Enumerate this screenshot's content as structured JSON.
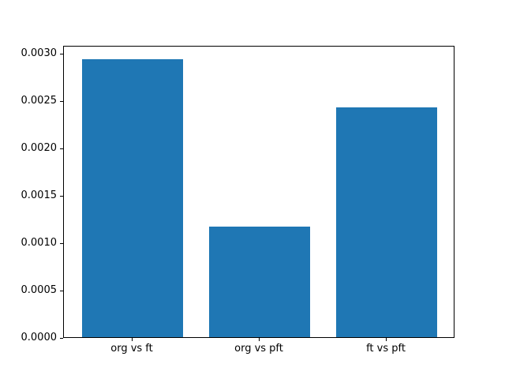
{
  "chart_data": {
    "type": "bar",
    "title": "",
    "xlabel": "",
    "ylabel": "",
    "categories": [
      "org vs ft",
      "org vs pft",
      "ft vs pft"
    ],
    "values": [
      0.00294,
      0.00117,
      0.00243
    ],
    "yticks": [
      {
        "value": 0.0,
        "label": "0.0000"
      },
      {
        "value": 0.0005,
        "label": "0.0005"
      },
      {
        "value": 0.001,
        "label": "0.0010"
      },
      {
        "value": 0.0015,
        "label": "0.0015"
      },
      {
        "value": 0.002,
        "label": "0.0020"
      },
      {
        "value": 0.0025,
        "label": "0.0025"
      },
      {
        "value": 0.003,
        "label": "0.0030"
      }
    ],
    "ylim": [
      0,
      0.003087
    ],
    "xlim": [
      -0.54,
      2.54
    ],
    "bar_width": 0.8,
    "grid": false,
    "legend": null,
    "colors": {
      "bar": "#1f77b4",
      "spine": "#000000",
      "tick": "#000000",
      "text": "#000000",
      "background": "#ffffff"
    }
  }
}
